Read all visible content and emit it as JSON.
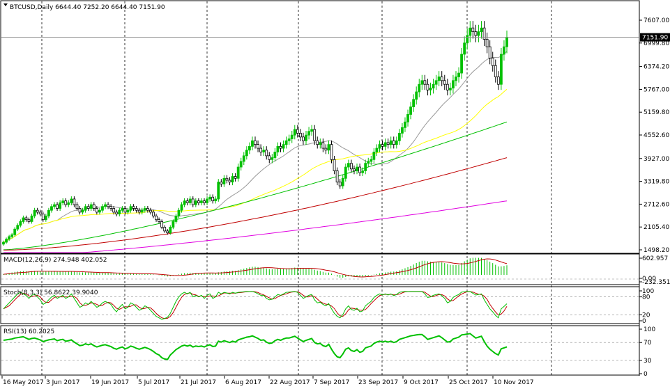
{
  "chart_data": [
    {
      "type": "candlestick",
      "title": "BTCUSD,Daily  6644.40 7252.20 6644.40 7151.90",
      "symbol": "BTCUSD",
      "timeframe": "Daily",
      "ohlc_header": {
        "open": 6644.4,
        "high": 7252.2,
        "low": 6644.4,
        "close": 7151.9
      },
      "current_price_label": "7151.90",
      "ylim": [
        1498.2,
        7820
      ],
      "yticks": [
        "7607.00",
        "6999.80",
        "6374.20",
        "5767.00",
        "5159.80",
        "4552.60",
        "3927.00",
        "3319.80",
        "2712.60",
        "2105.40",
        "1498.20"
      ],
      "xticks": [
        "16 May 2017",
        "3 Jun 2017",
        "19 Jun 2017",
        "5 Jul 2017",
        "21 Jul 2017",
        "6 Aug 2017",
        "22 Aug 2017",
        "7 Sep 2017",
        "23 Sep 2017",
        "9 Oct 2017",
        "25 Oct 2017",
        "10 Nov 2017"
      ],
      "candle_colors": {
        "bull": "#00c000",
        "bear": "#000000"
      },
      "close_series": [
        1700,
        1780,
        1850,
        1900,
        2050,
        2150,
        2250,
        2350,
        2300,
        2250,
        2400,
        2550,
        2500,
        2450,
        2300,
        2400,
        2550,
        2650,
        2700,
        2600,
        2750,
        2800,
        2700,
        2750,
        2850,
        2700,
        2600,
        2500,
        2550,
        2650,
        2600,
        2700,
        2600,
        2500,
        2550,
        2650,
        2700,
        2650,
        2600,
        2500,
        2450,
        2550,
        2600,
        2500,
        2550,
        2650,
        2600,
        2550,
        2500,
        2550,
        2600,
        2550,
        2500,
        2400,
        2300,
        2250,
        2100,
        2000,
        1950,
        2100,
        2250,
        2400,
        2550,
        2700,
        2800,
        2750,
        2850,
        2700,
        2800,
        2750,
        2800,
        2750,
        2850,
        2900,
        2800,
        2850,
        3300,
        3250,
        3400,
        3350,
        3300,
        3450,
        3400,
        3700,
        3850,
        4000,
        4150,
        4250,
        4400,
        4300,
        4200,
        4100,
        4150,
        4000,
        3900,
        3950,
        4100,
        4250,
        4200,
        4300,
        4400,
        4450,
        4550,
        4700,
        4600,
        4500,
        4400,
        4550,
        4650,
        4700,
        4400,
        4300,
        4350,
        4200,
        4150,
        4300,
        3900,
        3600,
        3300,
        3200,
        3400,
        3700,
        3800,
        3650,
        3600,
        3700,
        3550,
        3600,
        3800,
        3850,
        3900,
        4100,
        4200,
        4300,
        4250,
        4350,
        4300,
        4400,
        4300,
        4400,
        4600,
        4750,
        4900,
        5100,
        5300,
        5500,
        5700,
        5900,
        6000,
        5900,
        5750,
        5800,
        5900,
        6000,
        6100,
        6000,
        5900,
        5750,
        5800,
        6000,
        6100,
        6200,
        6700,
        7000,
        7200,
        7400,
        7300,
        7200,
        7300,
        7400,
        7100,
        6900,
        6600,
        6400,
        6100,
        5900,
        6700,
        6900,
        7151.9
      ],
      "ma_lines": [
        {
          "color": "#999999"
        },
        {
          "color": "#ffff00"
        },
        {
          "color": "#00c000"
        },
        {
          "color": "#c00000"
        },
        {
          "color": "#e000e0"
        }
      ]
    },
    {
      "type": "bar",
      "title": "MACD(12,26,9) 274.948 402.052",
      "yticks": [
        "602.957",
        "0.00",
        "-232.351"
      ],
      "ylim": [
        -232.351,
        602.957
      ],
      "histogram_color": "#00c000",
      "signal_color": "#c00000",
      "histogram": [
        20,
        40,
        60,
        80,
        100,
        110,
        120,
        130,
        125,
        118,
        124,
        134,
        126,
        120,
        108,
        108,
        114,
        120,
        120,
        112,
        118,
        118,
        112,
        110,
        112,
        104,
        94,
        84,
        82,
        84,
        80,
        82,
        76,
        68,
        66,
        68,
        70,
        66,
        60,
        50,
        42,
        44,
        46,
        40,
        40,
        44,
        40,
        36,
        30,
        30,
        32,
        30,
        24,
        14,
        2,
        -10,
        -28,
        -44,
        -54,
        -44,
        -26,
        -6,
        16,
        40,
        58,
        64,
        72,
        64,
        66,
        62,
        60,
        56,
        60,
        62,
        54,
        54,
        86,
        96,
        114,
        120,
        124,
        134,
        134,
        158,
        182,
        206,
        230,
        250,
        270,
        270,
        260,
        244,
        232,
        214,
        194,
        186,
        190,
        202,
        200,
        206,
        216,
        220,
        228,
        242,
        238,
        226,
        206,
        200,
        202,
        200,
        170,
        142,
        128,
        100,
        76,
        76,
        40,
        -6,
        -58,
        -94,
        -96,
        -70,
        -50,
        -56,
        -66,
        -58,
        -68,
        -66,
        -44,
        -30,
        -16,
        8,
        28,
        50,
        62,
        80,
        92,
        106,
        110,
        120,
        150,
        184,
        220,
        258,
        300,
        346,
        394,
        438,
        470,
        470,
        452,
        438,
        428,
        424,
        424,
        412,
        392,
        360,
        334,
        324,
        326,
        334,
        396,
        452,
        506,
        552,
        568,
        568,
        566,
        566,
        528,
        488,
        440,
        392,
        336,
        282,
        284,
        296,
        320
      ]
    },
    {
      "type": "line",
      "title": "Stoch(8,3,3) 56.8622 39.9040",
      "yticks": [
        "100",
        "80",
        "20",
        "0"
      ],
      "ylim": [
        0,
        100
      ],
      "series_colors": [
        "#00c000",
        "#c00000"
      ],
      "k": [
        40,
        50,
        60,
        70,
        80,
        90,
        95,
        90,
        85,
        75,
        85,
        90,
        80,
        70,
        55,
        60,
        70,
        80,
        85,
        75,
        80,
        85,
        75,
        80,
        90,
        75,
        60,
        45,
        50,
        60,
        55,
        65,
        55,
        45,
        50,
        60,
        65,
        60,
        55,
        40,
        30,
        45,
        55,
        40,
        45,
        60,
        55,
        45,
        35,
        40,
        50,
        45,
        35,
        25,
        15,
        10,
        5,
        8,
        12,
        25,
        45,
        65,
        80,
        90,
        95,
        90,
        95,
        80,
        85,
        80,
        85,
        75,
        85,
        90,
        75,
        80,
        95,
        90,
        95,
        93,
        90,
        95,
        92,
        95,
        96,
        97,
        98,
        98,
        98,
        95,
        90,
        85,
        85,
        75,
        70,
        72,
        80,
        88,
        85,
        90,
        95,
        96,
        97,
        98,
        95,
        85,
        75,
        80,
        85,
        88,
        70,
        60,
        62,
        55,
        50,
        58,
        40,
        25,
        15,
        10,
        20,
        40,
        50,
        38,
        35,
        42,
        30,
        33,
        50,
        58,
        65,
        78,
        85,
        90,
        86,
        90,
        86,
        90,
        84,
        88,
        95,
        97,
        98,
        98,
        98,
        98,
        98,
        98,
        98,
        90,
        78,
        80,
        85,
        88,
        90,
        84,
        75,
        60,
        65,
        78,
        84,
        88,
        96,
        97,
        98,
        98,
        92,
        86,
        88,
        90,
        70,
        55,
        40,
        30,
        18,
        10,
        40,
        48,
        57
      ]
    },
    {
      "type": "line",
      "title": "RSI(13) 60.2025",
      "yticks": [
        "100",
        "70",
        "30",
        "0"
      ],
      "ylim": [
        0,
        100
      ],
      "series_colors": [
        "#00c000"
      ],
      "values": [
        75,
        76,
        77,
        78,
        80,
        81,
        82,
        83,
        80,
        77,
        79,
        80,
        78,
        76,
        72,
        74,
        76,
        77,
        78,
        74,
        76,
        77,
        73,
        74,
        76,
        71,
        67,
        63,
        64,
        67,
        65,
        67,
        63,
        60,
        62,
        64,
        65,
        63,
        61,
        57,
        55,
        58,
        60,
        56,
        58,
        62,
        60,
        57,
        55,
        57,
        59,
        57,
        54,
        50,
        45,
        42,
        36,
        33,
        32,
        42,
        48,
        54,
        58,
        62,
        64,
        62,
        64,
        60,
        62,
        61,
        62,
        60,
        63,
        65,
        61,
        62,
        73,
        71,
        74,
        72,
        70,
        73,
        71,
        76,
        78,
        80,
        82,
        83,
        85,
        82,
        79,
        75,
        76,
        71,
        68,
        69,
        74,
        77,
        75,
        78,
        80,
        80,
        82,
        84,
        80,
        76,
        72,
        75,
        77,
        79,
        70,
        67,
        68,
        63,
        61,
        66,
        55,
        45,
        38,
        36,
        44,
        55,
        58,
        52,
        50,
        54,
        48,
        50,
        58,
        60,
        62,
        68,
        71,
        73,
        71,
        73,
        71,
        73,
        70,
        72,
        77,
        79,
        81,
        83,
        85,
        86,
        87,
        88,
        88,
        83,
        77,
        79,
        81,
        83,
        85,
        81,
        76,
        71,
        72,
        78,
        80,
        82,
        87,
        88,
        89,
        90,
        85,
        80,
        82,
        84,
        72,
        62,
        55,
        50,
        45,
        42,
        56,
        58,
        60.2
      ]
    }
  ]
}
